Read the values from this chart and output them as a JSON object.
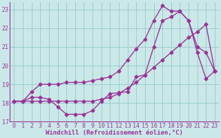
{
  "bg_color": "#cbe8e8",
  "line_color": "#993399",
  "grid_color": "#99cccc",
  "xlabel": "Windchill (Refroidissement éolien,°C)",
  "xlim": [
    -0.5,
    23.5
  ],
  "ylim": [
    17,
    23.4
  ],
  "yticks": [
    17,
    18,
    19,
    20,
    21,
    22,
    23
  ],
  "xticks": [
    0,
    1,
    2,
    3,
    4,
    5,
    6,
    7,
    8,
    9,
    10,
    11,
    12,
    13,
    14,
    15,
    16,
    17,
    18,
    19,
    20,
    21,
    22,
    23
  ],
  "series": [
    [
      18.1,
      18.1,
      18.3,
      18.3,
      18.2,
      17.8,
      17.4,
      17.4,
      17.4,
      17.6,
      18.1,
      18.5,
      18.55,
      18.6,
      19.4,
      19.5,
      21.0,
      22.4,
      22.6,
      22.9,
      22.4,
      20.7,
      19.3,
      19.7
    ],
    [
      18.1,
      18.1,
      18.1,
      18.1,
      18.1,
      18.1,
      18.1,
      18.1,
      18.1,
      18.1,
      18.2,
      18.3,
      18.5,
      18.8,
      19.1,
      19.5,
      19.9,
      20.3,
      20.7,
      21.1,
      21.5,
      21.8,
      22.2,
      19.7
    ],
    [
      18.1,
      18.1,
      18.6,
      19.0,
      19.0,
      19.0,
      19.1,
      19.1,
      19.1,
      19.2,
      19.3,
      19.4,
      19.7,
      20.3,
      20.9,
      21.4,
      22.4,
      23.2,
      22.9,
      22.9,
      22.4,
      21.0,
      20.7,
      19.7
    ]
  ],
  "marker": "D",
  "markersize": 2.5,
  "linewidth": 1.0,
  "xlabel_fontsize": 6.5,
  "tick_fontsize": 6.0
}
